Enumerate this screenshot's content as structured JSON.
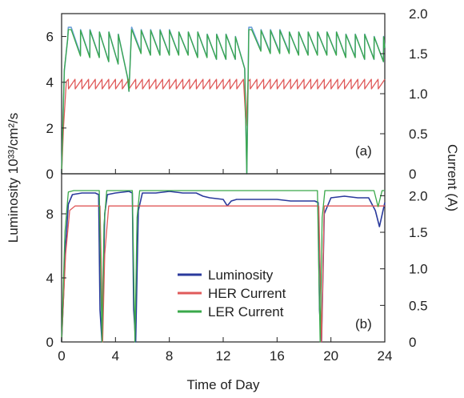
{
  "chart_data": [
    {
      "panel": "(a)",
      "type": "line",
      "ylabel": "Luminosity 10³³/cm²/s",
      "y2label": "Current (A)",
      "xlim": [
        0,
        24
      ],
      "ylim": [
        0,
        7
      ],
      "y2lim": [
        0,
        2
      ],
      "xticks": [
        0,
        4,
        8,
        12,
        16,
        20,
        24
      ],
      "yticks": [
        0,
        2,
        4,
        6
      ],
      "y2ticks": [
        "0",
        "0.5",
        "1.0",
        "1.5",
        "2.0"
      ],
      "grid": false,
      "colors": {
        "Luminosity": "#6a9fd8",
        "HER Current": "#e05a5a",
        "LER Current": "#3aa84a"
      },
      "series": [
        {
          "name": "Luminosity",
          "axis": "left",
          "x": [
            0.0,
            0.2,
            0.45,
            0.5,
            0.7,
            0.71,
            1.4,
            1.41,
            2.1,
            2.11,
            2.8,
            2.81,
            3.5,
            3.51,
            4.2,
            4.21,
            4.9,
            5.0,
            5.2,
            5.21,
            5.9,
            5.91,
            6.6,
            6.61,
            7.3,
            7.31,
            8.0,
            8.01,
            8.7,
            8.71,
            9.4,
            9.41,
            10.1,
            10.11,
            10.8,
            10.81,
            11.5,
            11.51,
            12.2,
            12.21,
            12.9,
            12.91,
            13.6,
            13.75,
            13.9,
            14.1,
            14.11,
            14.8,
            14.81,
            15.5,
            15.51,
            16.2,
            16.21,
            16.9,
            16.91,
            17.6,
            17.61,
            18.3,
            18.31,
            19.0,
            19.01,
            19.7,
            19.71,
            20.4,
            20.41,
            21.1,
            21.11,
            21.8,
            21.81,
            22.5,
            22.51,
            23.2,
            23.21,
            23.9,
            23.91,
            24.0
          ],
          "values": [
            0,
            4.5,
            5.9,
            6.4,
            6.4,
            6.4,
            5.2,
            6.3,
            5.1,
            6.3,
            5.1,
            6.2,
            4.9,
            6.2,
            4.8,
            6.1,
            4.2,
            3.6,
            6.4,
            6.4,
            5.3,
            6.3,
            5.2,
            6.3,
            5.2,
            6.3,
            5.2,
            6.3,
            5.2,
            6.2,
            5.2,
            6.2,
            5.1,
            6.2,
            5.1,
            6.1,
            5.0,
            6.1,
            5.0,
            6.1,
            5.0,
            6.0,
            4.6,
            0,
            6.4,
            6.4,
            6.4,
            5.4,
            6.3,
            5.3,
            6.3,
            5.3,
            6.3,
            5.3,
            6.2,
            5.2,
            6.2,
            5.2,
            6.2,
            5.2,
            6.2,
            5.2,
            6.2,
            5.2,
            6.2,
            5.1,
            6.1,
            5.1,
            6.1,
            5.0,
            6.1,
            5.0,
            6.0,
            4.9,
            6.0,
            5.5
          ]
        },
        {
          "name": "HER Current",
          "axis": "right",
          "x": [
            0.0,
            0.15,
            0.35,
            0.5,
            0.51,
            1.0,
            1.01,
            1.5,
            1.51,
            2.0,
            2.01,
            2.5,
            2.51,
            3.0,
            3.01,
            3.5,
            3.51,
            4.0,
            4.01,
            4.5,
            4.51,
            5.0,
            5.01,
            5.5,
            5.51,
            6.0,
            6.01,
            6.5,
            6.51,
            7.0,
            7.01,
            7.5,
            7.51,
            8.0,
            8.01,
            8.5,
            8.51,
            9.0,
            9.01,
            9.5,
            9.51,
            10.0,
            10.01,
            10.5,
            10.51,
            11.0,
            11.01,
            11.5,
            11.51,
            12.0,
            12.01,
            12.5,
            12.51,
            13.0,
            13.01,
            13.5,
            13.7,
            13.85,
            14.0,
            14.01,
            14.5,
            14.51,
            15.0,
            15.01,
            15.5,
            15.51,
            16.0,
            16.01,
            16.5,
            16.51,
            17.0,
            17.01,
            17.5,
            17.51,
            18.0,
            18.01,
            18.5,
            18.51,
            19.0,
            19.01,
            19.5,
            19.51,
            20.0,
            20.01,
            20.5,
            20.51,
            21.0,
            21.01,
            21.5,
            21.51,
            22.0,
            22.01,
            22.5,
            22.51,
            23.0,
            23.01,
            23.5,
            23.51,
            24.0
          ],
          "values": [
            0,
            0.6,
            1.15,
            1.18,
            1.06,
            1.18,
            1.06,
            1.18,
            1.06,
            1.18,
            1.06,
            1.18,
            1.06,
            1.18,
            1.06,
            1.18,
            1.06,
            1.18,
            1.06,
            1.18,
            1.06,
            1.18,
            1.06,
            1.18,
            1.06,
            1.18,
            1.06,
            1.18,
            1.06,
            1.18,
            1.06,
            1.18,
            1.06,
            1.18,
            1.06,
            1.18,
            1.06,
            1.18,
            1.06,
            1.18,
            1.06,
            1.18,
            1.06,
            1.18,
            1.06,
            1.18,
            1.06,
            1.18,
            1.06,
            1.18,
            1.06,
            1.18,
            1.06,
            1.18,
            1.06,
            1.18,
            0.6,
            1.15,
            1.18,
            1.06,
            1.18,
            1.06,
            1.18,
            1.06,
            1.18,
            1.06,
            1.18,
            1.06,
            1.18,
            1.06,
            1.18,
            1.06,
            1.18,
            1.06,
            1.18,
            1.06,
            1.18,
            1.06,
            1.18,
            1.06,
            1.18,
            1.06,
            1.18,
            1.06,
            1.18,
            1.06,
            1.18,
            1.06,
            1.18,
            1.06,
            1.18,
            1.06,
            1.18,
            1.06,
            1.18,
            1.06,
            1.18,
            1.06,
            1.18
          ]
        },
        {
          "name": "LER Current",
          "axis": "right",
          "x": [
            0.0,
            0.2,
            0.45,
            0.5,
            0.7,
            0.71,
            1.4,
            1.41,
            2.1,
            2.11,
            2.8,
            2.81,
            3.5,
            3.51,
            4.2,
            4.21,
            4.9,
            5.0,
            5.2,
            5.21,
            5.9,
            5.91,
            6.6,
            6.61,
            7.3,
            7.31,
            8.0,
            8.01,
            8.7,
            8.71,
            9.4,
            9.41,
            10.1,
            10.11,
            10.8,
            10.81,
            11.5,
            11.51,
            12.2,
            12.21,
            12.9,
            12.91,
            13.6,
            13.75,
            13.9,
            14.1,
            14.11,
            14.8,
            14.81,
            15.5,
            15.51,
            16.2,
            16.21,
            16.9,
            16.91,
            17.6,
            17.61,
            18.3,
            18.31,
            19.0,
            19.01,
            19.7,
            19.71,
            20.4,
            20.41,
            21.1,
            21.11,
            21.8,
            21.81,
            22.5,
            22.51,
            23.2,
            23.21,
            23.9,
            23.91,
            24.0
          ],
          "values": [
            0,
            1.3,
            1.68,
            1.8,
            1.8,
            1.8,
            1.47,
            1.79,
            1.45,
            1.79,
            1.45,
            1.77,
            1.4,
            1.77,
            1.37,
            1.74,
            1.2,
            1.03,
            1.8,
            1.8,
            1.5,
            1.79,
            1.48,
            1.79,
            1.48,
            1.79,
            1.48,
            1.79,
            1.48,
            1.77,
            1.48,
            1.77,
            1.45,
            1.77,
            1.45,
            1.74,
            1.43,
            1.74,
            1.43,
            1.74,
            1.43,
            1.71,
            1.31,
            0,
            1.8,
            1.8,
            1.8,
            1.53,
            1.79,
            1.5,
            1.79,
            1.5,
            1.79,
            1.5,
            1.77,
            1.48,
            1.77,
            1.48,
            1.77,
            1.48,
            1.77,
            1.48,
            1.77,
            1.48,
            1.77,
            1.45,
            1.74,
            1.45,
            1.74,
            1.43,
            1.74,
            1.43,
            1.71,
            1.4,
            1.71,
            1.57
          ]
        }
      ]
    },
    {
      "panel": "(b)",
      "type": "line",
      "xlabel": "Time of Day",
      "ylabel": "Luminosity 10³³/cm²/s",
      "y2label": "Current (A)",
      "xlim": [
        0,
        24
      ],
      "ylim": [
        0,
        10.5
      ],
      "y2lim": [
        0,
        2.3
      ],
      "xticks": [
        0,
        4,
        8,
        12,
        16,
        20,
        24
      ],
      "yticks": [
        0,
        4,
        8
      ],
      "y2ticks": [
        "0",
        "0.5",
        "1.0",
        "1.5",
        "2.0"
      ],
      "grid": false,
      "legend": "center",
      "colors": {
        "Luminosity": "#2a3a9c",
        "HER Current": "#e05a5a",
        "LER Current": "#3aa84a"
      },
      "series": [
        {
          "name": "Luminosity",
          "axis": "left",
          "x": [
            0.0,
            0.3,
            0.5,
            0.8,
            1.5,
            2.5,
            2.75,
            2.85,
            3.0,
            3.2,
            3.4,
            4.0,
            5.0,
            5.25,
            5.35,
            5.5,
            5.7,
            6.0,
            7.0,
            8.0,
            9.0,
            10.0,
            10.5,
            11.0,
            12.0,
            12.3,
            12.6,
            13.0,
            14.0,
            15.0,
            16.0,
            17.0,
            18.0,
            18.8,
            19.05,
            19.15,
            19.3,
            19.5,
            20.0,
            21.0,
            22.0,
            22.8,
            23.3,
            23.6,
            24.0
          ],
          "values": [
            0,
            6.0,
            8.6,
            9.2,
            9.3,
            9.3,
            9.2,
            2.0,
            0,
            8.0,
            9.2,
            9.3,
            9.4,
            9.3,
            2.0,
            0,
            8.2,
            9.3,
            9.3,
            9.4,
            9.3,
            9.3,
            9.1,
            9.0,
            8.9,
            8.5,
            8.8,
            8.9,
            8.9,
            8.9,
            8.9,
            8.8,
            8.8,
            8.8,
            8.7,
            2.0,
            0,
            8.0,
            9.0,
            9.1,
            9.0,
            9.0,
            8.2,
            7.2,
            8.7
          ]
        },
        {
          "name": "HER Current",
          "axis": "right",
          "x": [
            0.0,
            0.3,
            0.6,
            1.0,
            2.85,
            2.95,
            3.05,
            3.2,
            3.5,
            19.1,
            19.2,
            19.3,
            19.5,
            24.0
          ],
          "values": [
            0,
            1.2,
            1.8,
            1.86,
            1.86,
            1.0,
            0,
            1.2,
            1.86,
            1.86,
            1.0,
            0,
            1.86,
            1.86
          ]
        },
        {
          "name": "LER Current",
          "axis": "right",
          "x": [
            0.0,
            0.25,
            0.5,
            0.9,
            2.8,
            2.9,
            3.0,
            3.15,
            3.35,
            5.25,
            5.35,
            5.45,
            5.6,
            5.8,
            19.0,
            19.1,
            19.2,
            19.35,
            19.55,
            23.2,
            23.5,
            23.8,
            24.0
          ],
          "values": [
            0,
            1.5,
            2.05,
            2.07,
            2.07,
            1.0,
            0,
            1.6,
            2.07,
            2.07,
            1.0,
            0,
            1.7,
            2.07,
            2.07,
            1.0,
            0,
            1.7,
            2.07,
            2.07,
            1.85,
            2.07,
            2.07
          ]
        }
      ]
    }
  ],
  "labels": {
    "xlabel": "Time of Day",
    "ylabel": "Luminosity 10³³/cm²/s",
    "y2label": "Current (A)"
  },
  "legend": {
    "items": [
      {
        "label": "Luminosity",
        "color": "#2a3a9c"
      },
      {
        "label": "HER Current",
        "color": "#e05a5a"
      },
      {
        "label": "LER Current",
        "color": "#3aa84a"
      }
    ]
  }
}
